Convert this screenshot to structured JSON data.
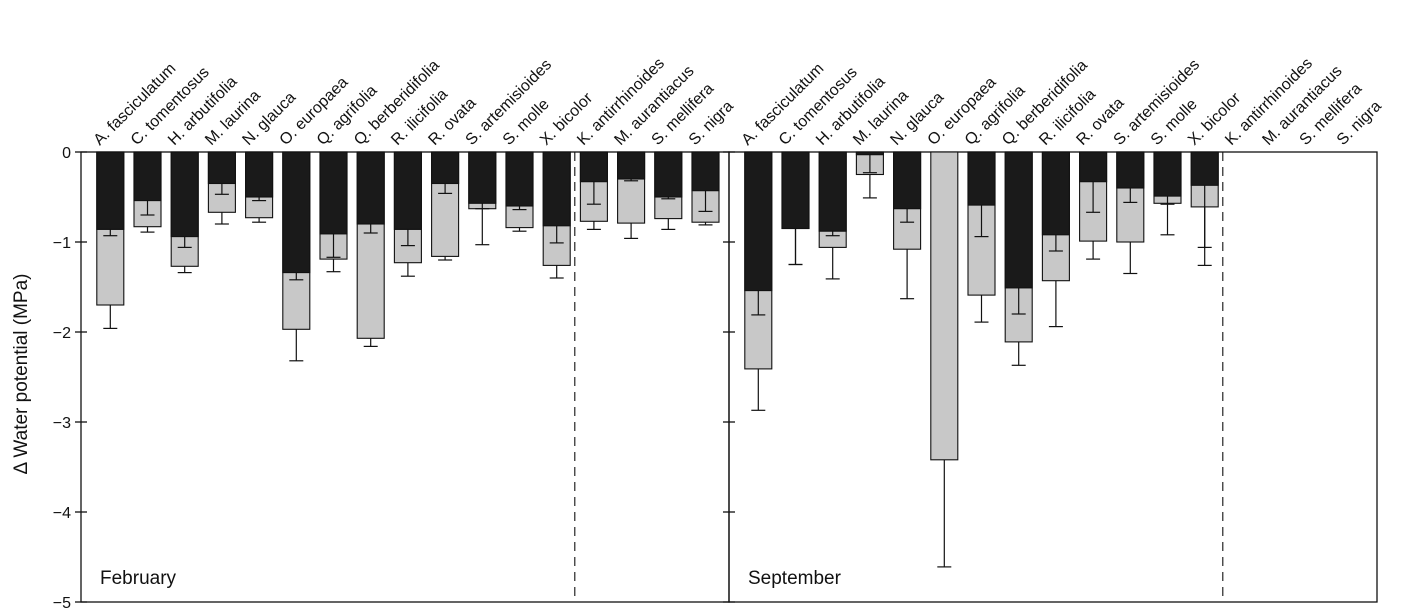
{
  "chart_data": {
    "type": "bar",
    "ylabel": "Δ Water potential (MPa)",
    "ylim": [
      -5,
      0
    ],
    "yticks": [
      0,
      -1,
      -2,
      -3,
      -4,
      -5
    ],
    "ytick_labels": [
      "0",
      "−1",
      "−2",
      "−3",
      "−4",
      "−5"
    ],
    "grid": false,
    "categories": [
      "A. fasciculatum",
      "C. tomentosus",
      "H. arbutifolia",
      "M. laurina",
      "N. glauca",
      "O. europaea",
      "Q. agrifolia",
      "Q. berberidifolia",
      "R. ilicifolia",
      "R. ovata",
      "S. artemisioides",
      "S. molle",
      "X. bicolor",
      "K. antirrhinoides",
      "M. aurantiacus",
      "S. mellifera",
      "S. nigra"
    ],
    "colors": {
      "dark": "#1a1a1a",
      "light": "#c8c8c8",
      "frame": "#111111"
    },
    "panels": [
      {
        "label": "February",
        "series": [
          {
            "values": [
              -0.86,
              -0.54,
              -0.94,
              -0.35,
              -0.5,
              -1.34,
              -0.91,
              -0.8,
              -0.86,
              -0.35,
              -0.57,
              -0.6,
              -0.82,
              -0.33,
              -0.3,
              -0.5,
              -0.43
            ],
            "errors": [
              0.07,
              0.16,
              0.12,
              0.12,
              0.04,
              0.08,
              0.26,
              0.1,
              0.18,
              0.11,
              0.06,
              0.04,
              0.19,
              0.25,
              0.02,
              0.02,
              0.23
            ]
          },
          {
            "values": [
              -1.7,
              -0.83,
              -1.27,
              -0.67,
              -0.73,
              -1.97,
              -1.19,
              -2.07,
              -1.23,
              -1.16,
              -0.63,
              -0.84,
              -1.26,
              -0.77,
              -0.79,
              -0.74,
              -0.78
            ],
            "errors": [
              0.26,
              0.06,
              0.07,
              0.13,
              0.05,
              0.35,
              0.14,
              0.09,
              0.15,
              0.04,
              0.4,
              0.04,
              0.14,
              0.09,
              0.17,
              0.12,
              0.03
            ]
          }
        ]
      },
      {
        "label": "September",
        "series": [
          {
            "values": [
              -1.54,
              -0.85,
              -0.88,
              -0.03,
              -0.63,
              0,
              -0.59,
              -1.51,
              -0.92,
              -0.33,
              -0.4,
              -0.49,
              -0.37,
              null,
              null,
              null,
              null
            ],
            "errors": [
              0.27,
              0.4,
              0.05,
              0.2,
              0.15,
              0,
              0.35,
              0.29,
              0.18,
              0.34,
              0.16,
              0.09,
              0.69,
              null,
              null,
              null,
              null
            ]
          },
          {
            "values": [
              -2.41,
              -0.85,
              -1.06,
              -0.25,
              -1.08,
              -3.42,
              -1.59,
              -2.11,
              -1.43,
              -0.99,
              -1.0,
              -0.57,
              -0.61,
              null,
              null,
              null,
              null
            ],
            "errors": [
              0.46,
              0.4,
              0.35,
              0.26,
              0.55,
              1.19,
              0.3,
              0.26,
              0.51,
              0.2,
              0.35,
              0.35,
              0.65,
              null,
              null,
              null,
              null
            ]
          }
        ]
      }
    ]
  }
}
